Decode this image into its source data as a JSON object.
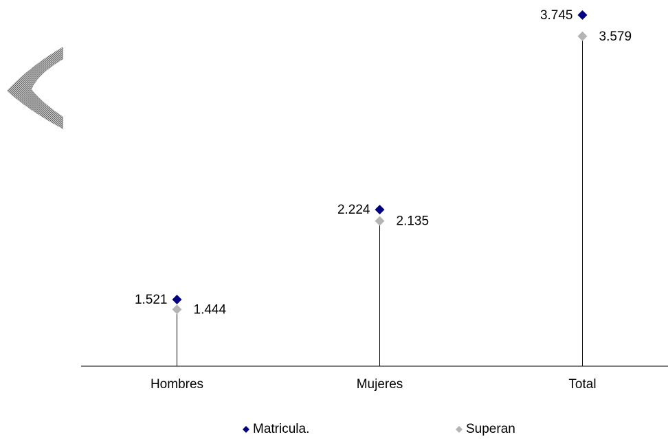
{
  "chart_data": {
    "type": "dot",
    "categories": [
      "Hombres",
      "Mujeres",
      "Total"
    ],
    "series": [
      {
        "name": "Matricula.",
        "color": "#000080",
        "values": [
          1521,
          2224,
          3745
        ],
        "value_labels": [
          "1.521",
          "2.224",
          "3.745"
        ]
      },
      {
        "name": "Superan",
        "color": "#b4b4b4",
        "values": [
          1444,
          2135,
          3579
        ],
        "value_labels": [
          "1.444",
          "2.135",
          "3.579"
        ]
      }
    ],
    "ylim": [
      1000,
      3800
    ]
  }
}
